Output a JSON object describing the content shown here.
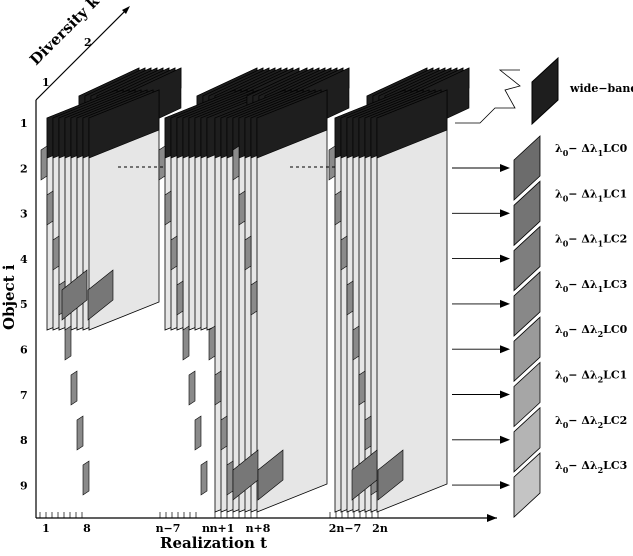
{
  "axes": {
    "object": {
      "label": "Object  i",
      "ticks": [
        "1",
        "2",
        "3",
        "4",
        "5",
        "6",
        "7",
        "8",
        "9"
      ]
    },
    "realization": {
      "label": "Realization  t",
      "ticks": [
        "1",
        "8",
        "n−7",
        "n",
        "n+1",
        "n+8",
        "2n−7",
        "2n"
      ]
    },
    "diversity": {
      "label": "Diversity  k",
      "ticks": [
        "1",
        "2"
      ]
    }
  },
  "legend": {
    "wideband": "wide−band",
    "channels": [
      {
        "lambda": "λ",
        "sub0": "0",
        "delta": "− Δλ",
        "sub": "1",
        "code": "LC0",
        "shade": "#6c6c6c"
      },
      {
        "lambda": "λ",
        "sub0": "0",
        "delta": "− Δλ",
        "sub": "1",
        "code": "LC1",
        "shade": "#747474"
      },
      {
        "lambda": "λ",
        "sub0": "0",
        "delta": "− Δλ",
        "sub": "1",
        "code": "LC2",
        "shade": "#7e7e7e"
      },
      {
        "lambda": "λ",
        "sub0": "0",
        "delta": "− Δλ",
        "sub": "1",
        "code": "LC3",
        "shade": "#888888"
      },
      {
        "lambda": "λ",
        "sub0": "0",
        "delta": "− Δλ",
        "sub": "2",
        "code": "LC0",
        "shade": "#9a9a9a"
      },
      {
        "lambda": "λ",
        "sub0": "0",
        "delta": "− Δλ",
        "sub": "2",
        "code": "LC1",
        "shade": "#a6a6a6"
      },
      {
        "lambda": "λ",
        "sub0": "0",
        "delta": "− Δλ",
        "sub": "2",
        "code": "LC2",
        "shade": "#b4b4b4"
      },
      {
        "lambda": "λ",
        "sub0": "0",
        "delta": "− Δλ",
        "sub": "2",
        "code": "LC3",
        "shade": "#c4c4c4"
      }
    ]
  },
  "colors": {
    "wideband_fill": "#1e1e1e",
    "panel_fill": "#e6e6e6",
    "object1_fill": "#1e1e1e",
    "edge": "#000000"
  }
}
